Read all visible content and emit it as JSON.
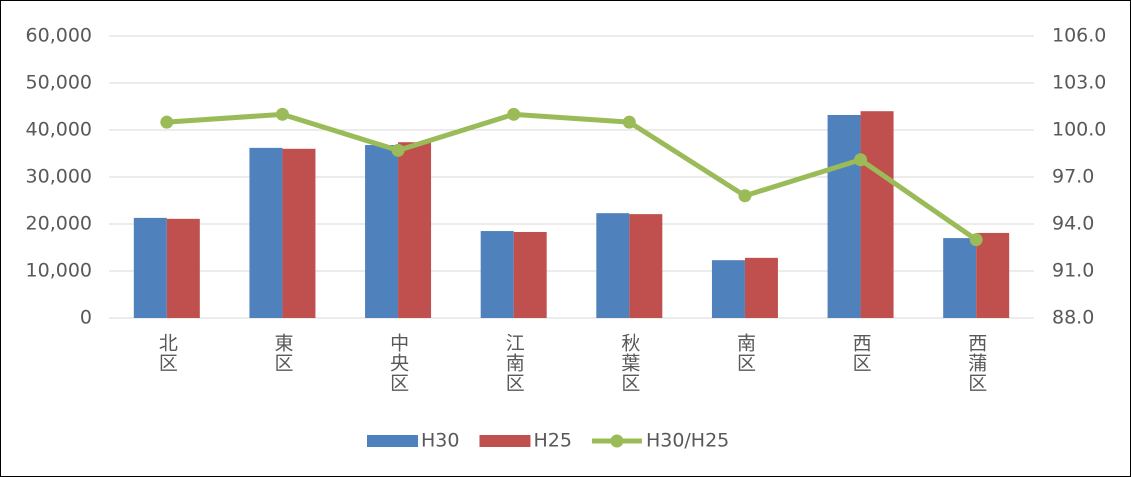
{
  "chart_data": {
    "type": "bar",
    "categories": [
      "北区",
      "東区",
      "中央区",
      "江南区",
      "秋葉区",
      "南区",
      "西区",
      "西蒲区"
    ],
    "series": [
      {
        "name": "H30",
        "color": "#4f81bd",
        "values": [
          21300,
          36200,
          36800,
          18500,
          22300,
          12300,
          43200,
          17000
        ]
      },
      {
        "name": "H25",
        "color": "#c0504d",
        "values": [
          21100,
          36000,
          37400,
          18300,
          22100,
          12800,
          44000,
          18100
        ]
      },
      {
        "name": "H30/H25",
        "color": "#9bbb59",
        "type": "line",
        "axis": "y2",
        "values": [
          100.5,
          101.0,
          98.7,
          101.0,
          100.5,
          95.8,
          98.1,
          93.0
        ]
      }
    ],
    "ylim": [
      0,
      60000
    ],
    "yticks": [
      0,
      {
        "value": 10000,
        "label": "10,000"
      },
      {
        "value": 20000,
        "label": "20,000"
      },
      {
        "value": 30000,
        "label": "30,000"
      },
      {
        "value": 40000,
        "label": "40,000"
      },
      {
        "value": 50000,
        "label": "50,000"
      },
      {
        "value": 60000,
        "label": "60,000"
      }
    ],
    "y2lim": [
      88,
      106
    ],
    "y2ticks": [
      {
        "value": 88,
        "label": "88.0"
      },
      {
        "value": 91,
        "label": "91.0"
      },
      {
        "value": 94,
        "label": "94.0"
      },
      {
        "value": 97,
        "label": "97.0"
      },
      {
        "value": 100,
        "label": "100.0"
      },
      {
        "value": 103,
        "label": "103.0"
      },
      {
        "value": 106,
        "label": "106.0"
      }
    ],
    "grid": true,
    "legend": "bottom"
  }
}
